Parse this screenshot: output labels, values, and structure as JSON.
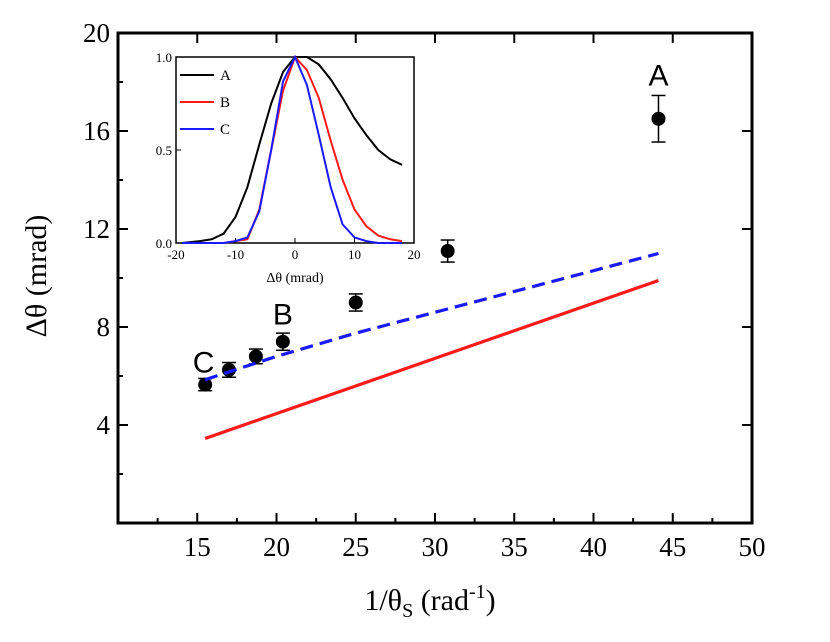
{
  "chart_data": [
    {
      "type": "scatter",
      "xlabel": "1/θ",
      "xlabel_sub": "S",
      "xlabel_unit_prefix": " (rad",
      "xlabel_unit_sup": "-1",
      "xlabel_unit_suffix": ")",
      "ylabel": "Δθ (mrad)",
      "xlim": [
        10,
        50
      ],
      "ylim": [
        0,
        20
      ],
      "xticks": [
        15,
        20,
        25,
        30,
        35,
        40,
        45,
        50
      ],
      "yticks": [
        4,
        8,
        12,
        16,
        20
      ],
      "series": [
        {
          "kind": "points_with_error",
          "color": "#000000",
          "x": [
            15.5,
            17.0,
            18.7,
            20.4,
            25.0,
            30.8,
            44.1
          ],
          "y": [
            5.65,
            6.25,
            6.8,
            7.4,
            9.0,
            11.1,
            16.5
          ],
          "err": [
            0.25,
            0.3,
            0.3,
            0.35,
            0.35,
            0.45,
            0.95
          ]
        },
        {
          "kind": "line",
          "color": "#1a1aff",
          "dash": true,
          "x": [
            15.5,
            20.0,
            25.0,
            30.0,
            35.0,
            40.0,
            44.1
          ],
          "y": [
            5.85,
            6.8,
            7.75,
            8.6,
            9.45,
            10.3,
            11.0
          ]
        },
        {
          "kind": "line",
          "color": "#ff1a1a",
          "dash": false,
          "x": [
            15.5,
            44.1
          ],
          "y": [
            3.45,
            9.9
          ]
        }
      ],
      "annotations": [
        {
          "text": "A",
          "x": 44.1,
          "y": 18.3
        },
        {
          "text": "B",
          "x": 20.4,
          "y": 8.55
        },
        {
          "text": "C",
          "x": 15.4,
          "y": 6.6
        }
      ]
    },
    {
      "type": "line",
      "xlabel": "Δθ (mrad)",
      "xlim": [
        -20,
        20
      ],
      "ylim": [
        0,
        1.0
      ],
      "xticks": [
        -20,
        -10,
        0,
        10,
        20
      ],
      "yticks": [
        0.0,
        0.5,
        1.0
      ],
      "ytick_labels": [
        "0.0",
        "0.5",
        "1.0"
      ],
      "legend_position": "top-left",
      "series": [
        {
          "name": "A",
          "color": "#000000",
          "x": [
            -19,
            -16,
            -14,
            -12,
            -10,
            -8,
            -6,
            -4,
            -2,
            0,
            2,
            4,
            6,
            8,
            10,
            12,
            14,
            16,
            18
          ],
          "y": [
            0.0,
            0.01,
            0.02,
            0.05,
            0.14,
            0.3,
            0.53,
            0.75,
            0.92,
            1.0,
            1.0,
            0.96,
            0.88,
            0.78,
            0.67,
            0.58,
            0.5,
            0.45,
            0.42
          ]
        },
        {
          "name": "B",
          "color": "#ff1a1a",
          "x": [
            -19,
            -14,
            -12,
            -10,
            -8,
            -6,
            -4,
            -2,
            0,
            2,
            4,
            6,
            8,
            10,
            12,
            14,
            16,
            18
          ],
          "y": [
            0.0,
            0.0,
            0.0,
            0.01,
            0.02,
            0.18,
            0.5,
            0.82,
            1.0,
            0.93,
            0.78,
            0.55,
            0.34,
            0.18,
            0.09,
            0.04,
            0.02,
            0.01
          ]
        },
        {
          "name": "C",
          "color": "#1a1aff",
          "x": [
            -19,
            -12,
            -10,
            -8,
            -6,
            -4,
            -2,
            0,
            2,
            4,
            6,
            8,
            10,
            12,
            14,
            16,
            18
          ],
          "y": [
            0.0,
            0.0,
            0.01,
            0.03,
            0.17,
            0.5,
            0.87,
            1.0,
            0.85,
            0.58,
            0.3,
            0.1,
            0.03,
            0.01,
            0.0,
            0.0,
            0.0
          ]
        }
      ]
    }
  ]
}
